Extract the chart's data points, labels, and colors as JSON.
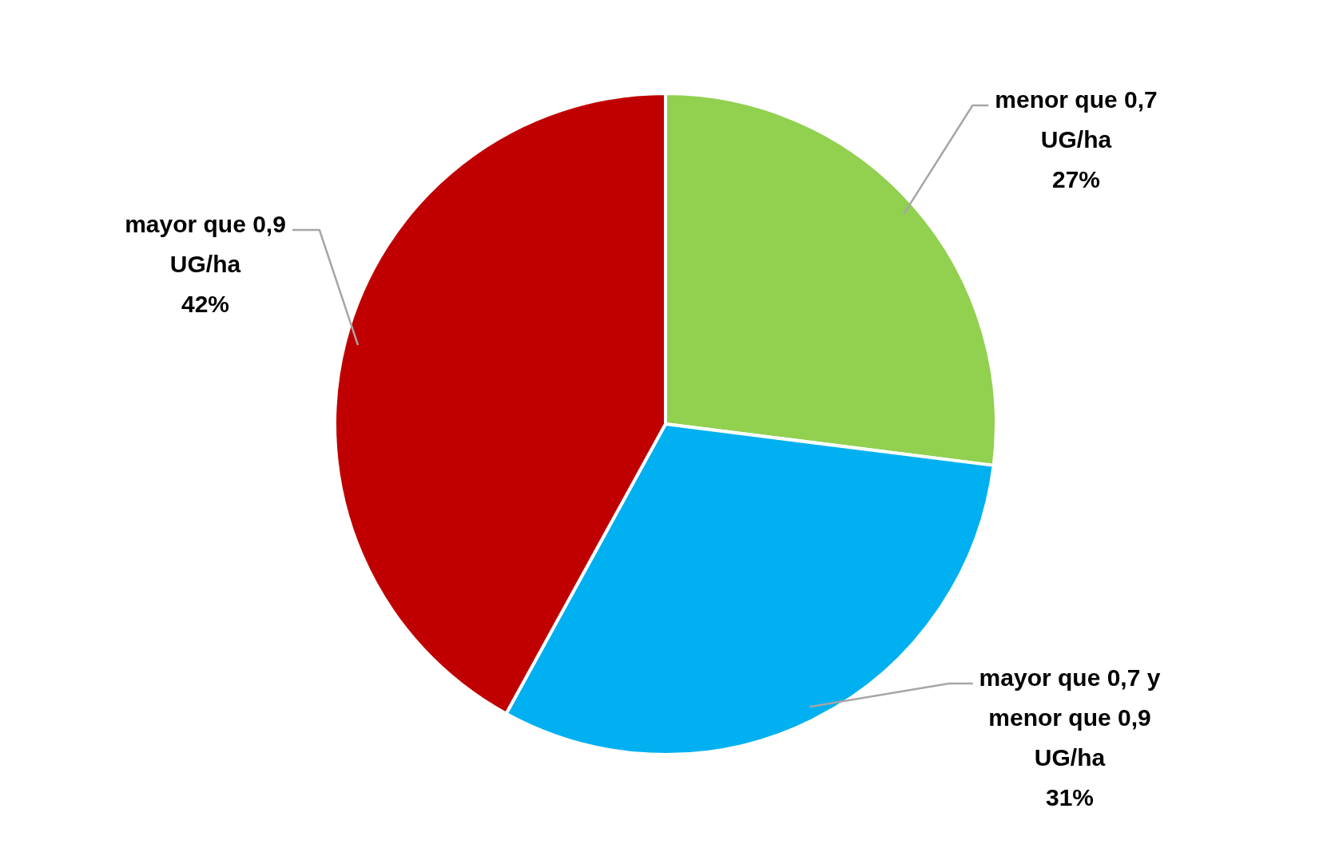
{
  "chart_data": {
    "type": "pie",
    "categories": [
      "menor que 0,7 UG/ha",
      "mayor que 0,7 y menor que 0,9 UG/ha",
      "mayor que 0,9 UG/ha"
    ],
    "values": [
      27,
      31,
      42
    ],
    "colors": [
      "#92d050",
      "#00b0f0",
      "#c00000"
    ],
    "value_labels": [
      "27%",
      "31%",
      "42%"
    ],
    "legend": false
  }
}
